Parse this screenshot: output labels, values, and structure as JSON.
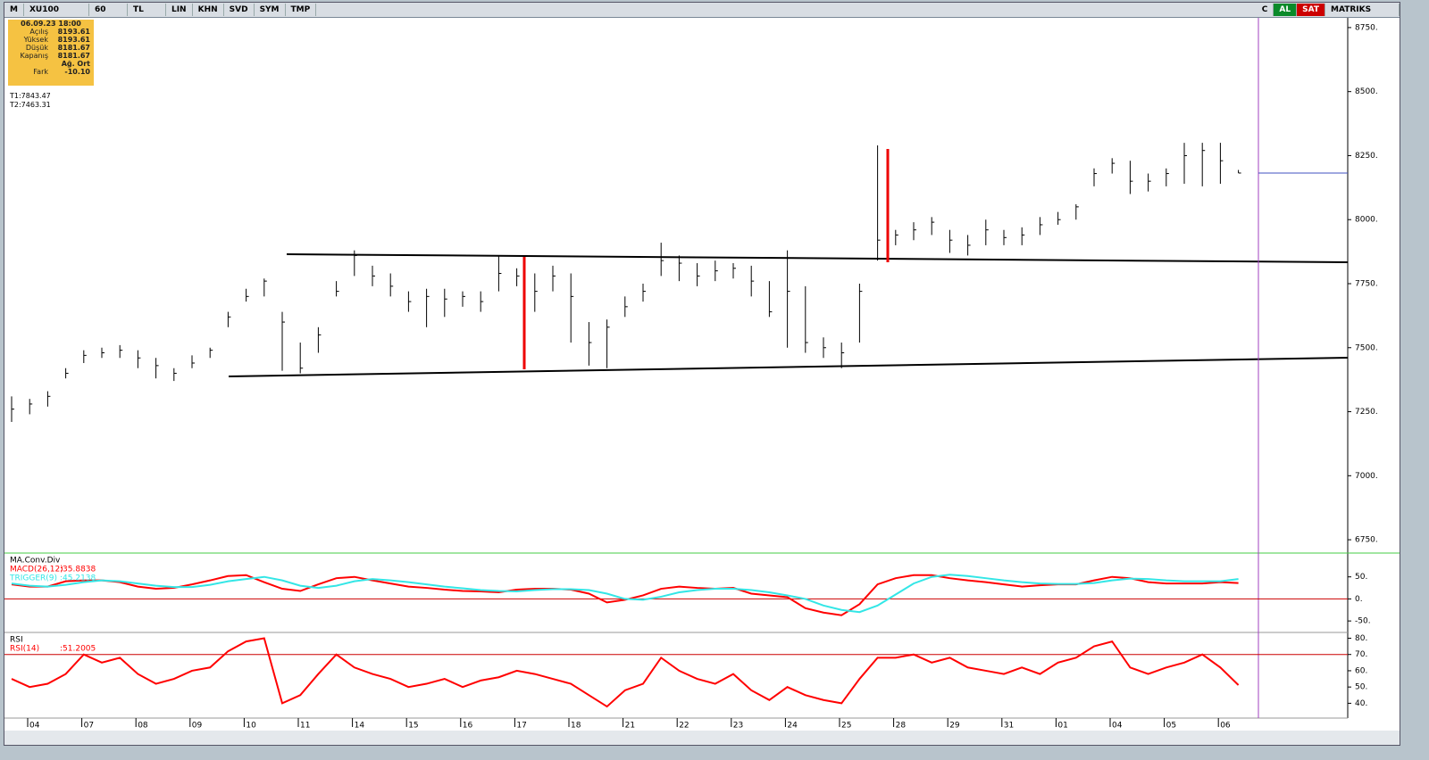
{
  "toolbar": {
    "logo": "M",
    "symbol": "XU100",
    "period": "60",
    "currency": "TL",
    "buttons": [
      "LIN",
      "KHN",
      "SVD",
      "SYM",
      "TMP"
    ],
    "right_buttons": [
      "C",
      "AL",
      "SAT"
    ],
    "brand": "MATRIKS"
  },
  "info_box": {
    "datetime": "06.09.23 18:00",
    "rows": [
      [
        "Açılış",
        "8193.61"
      ],
      [
        "Yüksek",
        "8193.61"
      ],
      [
        "Düşük",
        "8181.67"
      ],
      [
        "Kapanış",
        "8181.67"
      ],
      [
        "Ağ. Ort"
      ],
      [
        "Fark",
        "-10.10"
      ]
    ],
    "targets": [
      "T1:7843.47",
      "T2:7463.31"
    ]
  },
  "chart_data": [
    {
      "type": "ohlc",
      "color": "#000000",
      "ylim": [
        6705,
        8788
      ],
      "yticks": [
        {
          "value": 8750,
          "label": "8750."
        },
        {
          "value": 8500,
          "label": "8500."
        },
        {
          "value": 8250,
          "label": "8250."
        },
        {
          "value": 8000,
          "label": "8000."
        },
        {
          "value": 7750,
          "label": "7750."
        },
        {
          "value": 7500,
          "label": "7500."
        },
        {
          "value": 7250,
          "label": "7250."
        },
        {
          "value": 7000,
          "label": "7000."
        },
        {
          "value": 6750,
          "label": "6750."
        }
      ],
      "high": [
        7310,
        7300,
        7330,
        7420,
        7490,
        7500,
        7510,
        7490,
        7460,
        7420,
        7470,
        7500,
        7640,
        7730,
        7770,
        7640,
        7520,
        7580,
        7760,
        7880,
        7820,
        7790,
        7720,
        7730,
        7730,
        7720,
        7720,
        7860,
        7810,
        7790,
        7820,
        7790,
        7600,
        7610,
        7700,
        7750,
        7910,
        7860,
        7830,
        7840,
        7830,
        7820,
        7760,
        7880,
        7740,
        7540,
        7520,
        7750,
        8290,
        7960,
        7990,
        8010,
        7960,
        7940,
        8000,
        7960,
        7970,
        8010,
        8030,
        8060,
        8200,
        8240,
        8230,
        8180,
        8200,
        8300,
        8300,
        8300,
        8194
      ],
      "low": [
        7210,
        7240,
        7270,
        7380,
        7440,
        7460,
        7460,
        7420,
        7380,
        7370,
        7420,
        7460,
        7580,
        7680,
        7700,
        7410,
        7400,
        7480,
        7700,
        7780,
        7740,
        7700,
        7640,
        7580,
        7620,
        7660,
        7640,
        7720,
        7740,
        7640,
        7720,
        7520,
        7430,
        7420,
        7620,
        7680,
        7780,
        7760,
        7740,
        7760,
        7770,
        7700,
        7620,
        7500,
        7480,
        7460,
        7420,
        7520,
        7840,
        7900,
        7920,
        7940,
        7870,
        7860,
        7900,
        7900,
        7900,
        7940,
        7980,
        8000,
        8130,
        8180,
        8100,
        8110,
        8130,
        8140,
        8130,
        8140,
        8182
      ],
      "close": [
        7260,
        7280,
        7310,
        7400,
        7470,
        7480,
        7490,
        7460,
        7430,
        7400,
        7440,
        7490,
        7620,
        7700,
        7760,
        7600,
        7420,
        7550,
        7720,
        7860,
        7780,
        7740,
        7680,
        7700,
        7690,
        7700,
        7680,
        7790,
        7780,
        7720,
        7780,
        7700,
        7520,
        7580,
        7660,
        7720,
        7840,
        7830,
        7780,
        7800,
        7810,
        7760,
        7640,
        7720,
        7520,
        7500,
        7480,
        7720,
        7920,
        7940,
        7960,
        7990,
        7920,
        7900,
        7960,
        7930,
        7940,
        7980,
        8000,
        8050,
        8180,
        8220,
        8150,
        8150,
        8180,
        8250,
        8270,
        8230,
        8182
      ]
    },
    {
      "type": "line",
      "title": "MA.Conv.Div",
      "ylim": [
        -74,
        102
      ],
      "yticks": [
        {
          "value": 50,
          "label": "50."
        },
        {
          "value": 0,
          "label": "0."
        },
        {
          "value": -50,
          "label": "-50."
        }
      ],
      "series": [
        {
          "name": "MACD(26,12)",
          "last_label": ":35.8838",
          "color": "#ff0000",
          "values": [
            33,
            28,
            28,
            40,
            42,
            42,
            38,
            28,
            23,
            25,
            33,
            42,
            52,
            54,
            38,
            23,
            18,
            33,
            47,
            50,
            42,
            35,
            28,
            25,
            21,
            18,
            17,
            15,
            21,
            23,
            23,
            21,
            12,
            -8,
            -2,
            8,
            23,
            28,
            25,
            23,
            25,
            12,
            8,
            4,
            -21,
            -31,
            -37,
            -12,
            33,
            47,
            54,
            54,
            47,
            42,
            38,
            33,
            28,
            31,
            33,
            33,
            42,
            50,
            47,
            38,
            35,
            35,
            35,
            38,
            36
          ]
        },
        {
          "name": "TRIGGER(9)",
          "last_label": ":45.2138",
          "color": "#33e6e6",
          "values": [
            35,
            30,
            28,
            32,
            38,
            42,
            40,
            35,
            30,
            27,
            27,
            32,
            40,
            45,
            50,
            42,
            30,
            25,
            30,
            40,
            45,
            42,
            38,
            33,
            28,
            24,
            20,
            18,
            17,
            20,
            22,
            22,
            20,
            12,
            0,
            -2,
            5,
            15,
            20,
            23,
            23,
            20,
            15,
            8,
            0,
            -15,
            -25,
            -30,
            -15,
            10,
            35,
            50,
            55,
            52,
            47,
            42,
            38,
            35,
            34,
            34,
            36,
            42,
            46,
            45,
            42,
            40,
            40,
            40,
            45
          ]
        }
      ]
    },
    {
      "type": "line",
      "title": "RSI",
      "ylim": [
        32,
        83
      ],
      "yticks": [
        {
          "value": 80,
          "label": "80."
        },
        {
          "value": 70,
          "label": "70."
        },
        {
          "value": 60,
          "label": "60."
        },
        {
          "value": 50,
          "label": "50."
        },
        {
          "value": 40,
          "label": "40."
        }
      ],
      "categories": [
        "04",
        null,
        null,
        "07",
        null,
        null,
        "08",
        null,
        null,
        "09",
        null,
        null,
        "10",
        null,
        null,
        "11",
        null,
        null,
        "14",
        null,
        null,
        "15",
        null,
        null,
        "16",
        null,
        null,
        "17",
        null,
        null,
        "18",
        null,
        null,
        "21",
        null,
        null,
        "22",
        null,
        null,
        "23",
        null,
        null,
        "24",
        null,
        null,
        "25",
        null,
        null,
        "28",
        null,
        null,
        "29",
        null,
        null,
        "31",
        null,
        null,
        "01",
        null,
        null,
        "04",
        null,
        null,
        "05",
        null,
        null,
        "06",
        null,
        null
      ],
      "series": [
        {
          "name": "RSI(14)",
          "last_label": ":51.2005",
          "color": "#ff0000",
          "values": [
            55,
            50,
            52,
            58,
            70,
            65,
            68,
            58,
            52,
            55,
            60,
            62,
            72,
            78,
            80,
            40,
            45,
            58,
            70,
            62,
            58,
            55,
            50,
            52,
            55,
            50,
            54,
            56,
            60,
            58,
            55,
            52,
            45,
            38,
            48,
            52,
            68,
            60,
            55,
            52,
            58,
            48,
            42,
            50,
            45,
            42,
            40,
            55,
            68,
            68,
            70,
            65,
            68,
            62,
            60,
            58,
            62,
            58,
            65,
            68,
            75,
            78,
            62,
            58,
            62,
            65,
            70,
            62,
            51.2
          ]
        }
      ]
    }
  ]
}
